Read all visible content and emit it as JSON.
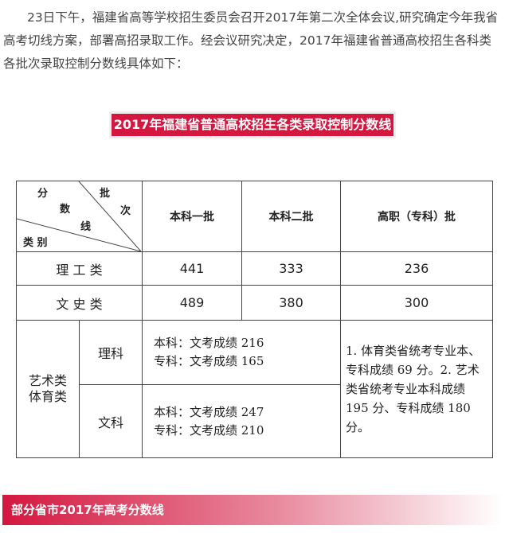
{
  "intro": "23日下午，福建省高等学校招生委员会召开2017年第二次全体会议,研究确定今年我省高考切线方案，部署高招录取工作。经会议研究决定，2017年福建省普通高校招生各科类各批次录取控制分数线具体如下：",
  "heading": "2017年福建省普通高校招生各类录取控制分数线",
  "table": {
    "corner": {
      "fen": "分",
      "shu": "数",
      "xian": "线",
      "pi": "批",
      "ci": "次",
      "leibie": "类 别"
    },
    "headers": [
      "本科一批",
      "本科二批",
      "高职（专科）批"
    ],
    "rows": [
      {
        "label": "理 工 类",
        "values": [
          "441",
          "333",
          "236"
        ]
      },
      {
        "label": "文 史 类",
        "values": [
          "489",
          "380",
          "300"
        ]
      }
    ],
    "art": {
      "label": "艺术类\n体育类",
      "sub": [
        {
          "label": "理科",
          "line1": "本科：文考成绩 216",
          "line2": "专科：文考成绩 165"
        },
        {
          "label": "文科",
          "line1": "本科：文考成绩 247",
          "line2": "专科：文考成绩 210"
        }
      ],
      "note": "1. 体育类省统考专业本、专科成绩 69 分。2. 艺术类省统考专业本科成绩 195 分、专科成绩 180 分。"
    }
  },
  "banner": "部分省市2017年高考分数线"
}
